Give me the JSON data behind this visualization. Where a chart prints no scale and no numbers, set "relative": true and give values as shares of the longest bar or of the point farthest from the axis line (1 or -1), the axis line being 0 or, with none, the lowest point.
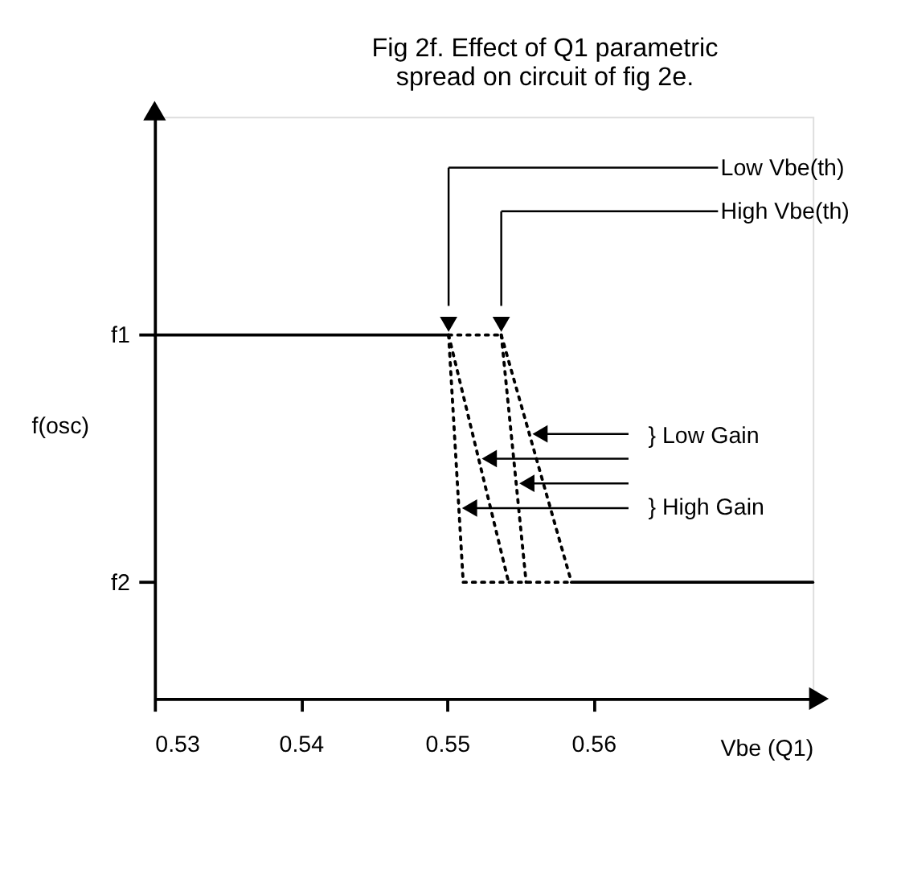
{
  "chart_data": {
    "type": "line",
    "title": [
      "Fig 2f. Effect of Q1 parametric",
      "spread on circuit of fig 2e."
    ],
    "xlabel": "Vbe (Q1)",
    "ylabel": "f(osc)",
    "xlim": [
      0.53,
      0.575
    ],
    "xticks": [
      0.53,
      0.54,
      0.55,
      0.56
    ],
    "relative": true,
    "grid": false,
    "marker": "none",
    "series": [
      {
        "color": "#000000",
        "line_style": "solid",
        "x": [
          0.53,
          0.5501
        ],
        "values": [
          1,
          1
        ]
      },
      {
        "color": "#000000",
        "line_style": "dotted",
        "x": [
          0.5501,
          0.5537
        ],
        "values": [
          1,
          1
        ]
      },
      {
        "color": "#000000",
        "line_style": "dotted",
        "x": [
          0.5501,
          0.5542
        ],
        "values": [
          1,
          0.32
        ]
      },
      {
        "color": "#000000",
        "line_style": "dotted",
        "x": [
          0.5501,
          0.5511
        ],
        "values": [
          1,
          0.32
        ]
      },
      {
        "color": "#000000",
        "line_style": "dotted",
        "x": [
          0.5537,
          0.5554
        ],
        "values": [
          1,
          0.32
        ]
      },
      {
        "color": "#000000",
        "line_style": "dotted",
        "x": [
          0.5537,
          0.5585
        ],
        "values": [
          1,
          0.32
        ]
      },
      {
        "color": "#000000",
        "line_style": "dotted",
        "x": [
          0.5511,
          0.5585
        ],
        "values": [
          0.32,
          0.32
        ]
      },
      {
        "color": "#000000",
        "line_style": "solid",
        "x": [
          0.5585,
          0.575
        ],
        "values": [
          0.32,
          0.32
        ]
      }
    ],
    "annotations": [
      "f1",
      "f2",
      "Low Vbe(th)",
      "High Vbe(th)",
      "} Low Gain",
      "} High Gain"
    ]
  }
}
